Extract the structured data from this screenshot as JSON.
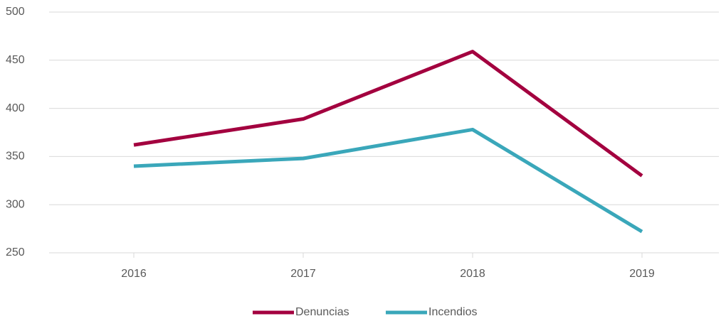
{
  "chart_data": {
    "type": "line",
    "categories": [
      "2016",
      "2017",
      "2018",
      "2019"
    ],
    "series": [
      {
        "name": "Denuncias",
        "color": "#a3003f",
        "values": [
          362,
          389,
          459,
          330
        ]
      },
      {
        "name": "Incendios",
        "color": "#3aa7ba",
        "values": [
          340,
          348,
          378,
          272
        ]
      }
    ],
    "ylim": [
      250,
      500
    ],
    "yticks": [
      250,
      300,
      350,
      400,
      450,
      500
    ],
    "grid": true,
    "legend": "bottom"
  }
}
